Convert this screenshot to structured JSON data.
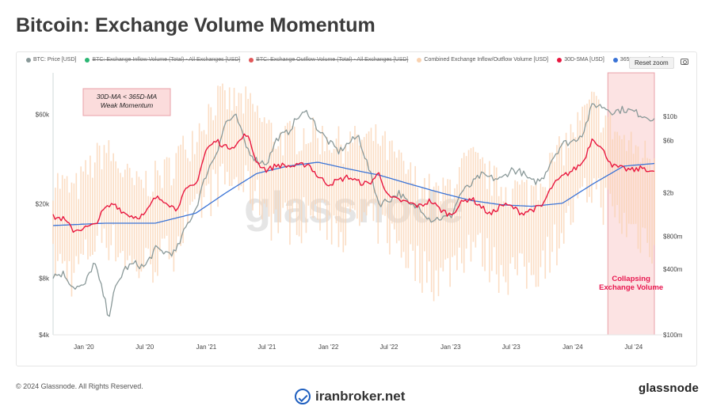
{
  "page": {
    "title": "Bitcoin: Exchange Volume Momentum",
    "copyright": "© 2024 Glassnode. All Rights Reserved.",
    "watermark_site": "iranbroker.net",
    "footer_logo": "glassnode",
    "center_watermark": "glassnode"
  },
  "toolbar": {
    "reset_zoom_label": "Reset zoom",
    "camera_icon": "camera-icon"
  },
  "legend": [
    {
      "label": "BTC: Price [USD]",
      "color": "#8a9999",
      "enabled": true
    },
    {
      "label": "BTC: Exchange Inflow Volume (Total) - All Exchanges [USD]",
      "color": "#2bb673",
      "enabled": false
    },
    {
      "label": "BTC: Exchange Outflow Volume (Total) - All Exchanges [USD]",
      "color": "#e15759",
      "enabled": false
    },
    {
      "label": "Combined Exchange Inflow/Outflow Volume [USD]",
      "color": "#f9d2b0",
      "enabled": true
    },
    {
      "label": "30D-SMA [USD]",
      "color": "#e8173f",
      "enabled": true
    },
    {
      "label": "365D-SMA [USD]",
      "color": "#3a73d6",
      "enabled": true
    }
  ],
  "annotations": {
    "weak_momentum": [
      "30D-MA < 365D-MA",
      "Weak Momentum"
    ],
    "collapsing": [
      "Collapsing",
      "Exchange Volume"
    ],
    "highlight_color": "#fbdcdc",
    "highlight_text_color": "#e8174f"
  },
  "chart_data": {
    "type": "line",
    "title": "Bitcoin: Exchange Volume Momentum",
    "x_ticks": [
      "Jan '20",
      "Jul '20",
      "Jan '21",
      "Jul '21",
      "Jan '22",
      "Jul '22",
      "Jan '23",
      "Jul '23",
      "Jan '24",
      "Jul '24"
    ],
    "x_range": [
      "2019-10-01",
      "2024-09-01"
    ],
    "y_left": {
      "label": "",
      "scale": "log",
      "ticks": [
        "$4k",
        "$8k",
        "$20k",
        "$60k"
      ],
      "tick_values": [
        4000,
        8000,
        20000,
        60000
      ],
      "range": [
        4000,
        100000
      ]
    },
    "y_right": {
      "label": "",
      "scale": "log",
      "ticks": [
        "$100m",
        "$400m",
        "$800m",
        "$2b",
        "$6b",
        "$10b"
      ],
      "tick_values": [
        100000000,
        400000000,
        800000000,
        2000000000,
        6000000000,
        10000000000
      ],
      "range": [
        100000000,
        25000000000
      ]
    },
    "highlight_range": [
      "2024-04-15",
      "2024-09-01"
    ],
    "grid": false,
    "legend_position": "top",
    "series": [
      {
        "name": "BTC: Price [USD]",
        "axis": "left",
        "color": "#8a9999",
        "dates": [
          "2019-10-01",
          "2019-11-01",
          "2019-12-01",
          "2020-01-01",
          "2020-02-01",
          "2020-03-01",
          "2020-03-15",
          "2020-04-01",
          "2020-05-01",
          "2020-06-01",
          "2020-07-01",
          "2020-08-01",
          "2020-09-01",
          "2020-10-01",
          "2020-11-01",
          "2020-12-01",
          "2021-01-01",
          "2021-02-01",
          "2021-03-01",
          "2021-04-01",
          "2021-05-01",
          "2021-06-01",
          "2021-07-01",
          "2021-08-01",
          "2021-09-01",
          "2021-10-01",
          "2021-11-01",
          "2021-12-01",
          "2022-01-01",
          "2022-02-01",
          "2022-03-01",
          "2022-04-01",
          "2022-05-01",
          "2022-06-01",
          "2022-07-01",
          "2022-08-01",
          "2022-09-01",
          "2022-10-01",
          "2022-11-01",
          "2022-12-01",
          "2023-01-01",
          "2023-02-01",
          "2023-03-01",
          "2023-04-01",
          "2023-05-01",
          "2023-06-01",
          "2023-07-01",
          "2023-08-01",
          "2023-09-01",
          "2023-10-01",
          "2023-11-01",
          "2023-12-01",
          "2024-01-01",
          "2024-02-01",
          "2024-03-01",
          "2024-04-01",
          "2024-05-01",
          "2024-06-01",
          "2024-07-01",
          "2024-08-01",
          "2024-09-01"
        ],
        "values": [
          8300,
          8500,
          7200,
          7200,
          9800,
          6400,
          5000,
          6800,
          9000,
          9600,
          9200,
          11500,
          11000,
          11000,
          15000,
          19000,
          29000,
          38000,
          55000,
          58000,
          40000,
          34000,
          33000,
          45000,
          48000,
          58000,
          62000,
          50000,
          43000,
          38000,
          42000,
          46000,
          31000,
          20000,
          21000,
          23000,
          19500,
          19300,
          16500,
          16800,
          17000,
          23000,
          25000,
          28500,
          27500,
          27000,
          30500,
          29500,
          26000,
          27000,
          35000,
          42000,
          43000,
          48000,
          68000,
          66000,
          62000,
          64000,
          62000,
          59000,
          57000
        ]
      },
      {
        "name": "Combined Exchange Inflow/Outflow Volume [USD]",
        "axis": "right",
        "color": "#f9d2b0",
        "dates": [
          "2019-10-01",
          "2019-12-01",
          "2020-03-01",
          "2020-06-01",
          "2020-09-01",
          "2020-12-01",
          "2021-02-01",
          "2021-05-01",
          "2021-08-01",
          "2021-11-01",
          "2022-02-01",
          "2022-06-01",
          "2022-09-01",
          "2022-12-01",
          "2023-03-01",
          "2023-06-01",
          "2023-09-01",
          "2023-12-01",
          "2024-03-01",
          "2024-06-01",
          "2024-09-01"
        ],
        "values": [
          1300000000,
          1000000000,
          2500000000,
          1100000000,
          1500000000,
          3500000000,
          7000000000,
          6500000000,
          3000000000,
          3500000000,
          2800000000,
          3000000000,
          1400000000,
          900000000,
          2000000000,
          1100000000,
          1000000000,
          2500000000,
          6500000000,
          2800000000,
          2000000000
        ]
      },
      {
        "name": "30D-SMA [USD]",
        "axis": "right",
        "color": "#e8173f",
        "dates": [
          "2019-10-01",
          "2019-11-01",
          "2019-12-01",
          "2020-01-01",
          "2020-02-01",
          "2020-03-01",
          "2020-04-01",
          "2020-05-01",
          "2020-06-01",
          "2020-07-01",
          "2020-08-01",
          "2020-09-01",
          "2020-10-01",
          "2020-11-01",
          "2020-12-01",
          "2021-01-01",
          "2021-02-01",
          "2021-03-01",
          "2021-04-01",
          "2021-05-01",
          "2021-06-01",
          "2021-07-01",
          "2021-08-01",
          "2021-09-01",
          "2021-10-01",
          "2021-11-01",
          "2021-12-01",
          "2022-01-01",
          "2022-02-01",
          "2022-03-01",
          "2022-04-01",
          "2022-05-01",
          "2022-06-01",
          "2022-07-01",
          "2022-08-01",
          "2022-09-01",
          "2022-10-01",
          "2022-11-01",
          "2022-12-01",
          "2023-01-01",
          "2023-02-01",
          "2023-03-01",
          "2023-04-01",
          "2023-05-01",
          "2023-06-01",
          "2023-07-01",
          "2023-08-01",
          "2023-09-01",
          "2023-10-01",
          "2023-11-01",
          "2023-12-01",
          "2024-01-01",
          "2024-02-01",
          "2024-03-01",
          "2024-04-01",
          "2024-05-01",
          "2024-06-01",
          "2024-07-01",
          "2024-08-01",
          "2024-09-01"
        ],
        "values": [
          1200000000,
          1150000000,
          900000000,
          950000000,
          1000000000,
          1400000000,
          1600000000,
          1300000000,
          1200000000,
          1250000000,
          1800000000,
          1700000000,
          1400000000,
          2100000000,
          2400000000,
          5000000000,
          6000000000,
          5200000000,
          5500000000,
          7000000000,
          3800000000,
          3200000000,
          3600000000,
          3500000000,
          3500000000,
          3700000000,
          2800000000,
          2400000000,
          2600000000,
          2800000000,
          2500000000,
          2400000000,
          3000000000,
          1800000000,
          1700000000,
          1600000000,
          1500000000,
          1700000000,
          1400000000,
          1250000000,
          1600000000,
          1800000000,
          1500000000,
          1250000000,
          1550000000,
          1500000000,
          1300000000,
          1400000000,
          1500000000,
          2300000000,
          2800000000,
          3200000000,
          3800000000,
          6500000000,
          4800000000,
          3500000000,
          3300000000,
          3200000000,
          3400000000,
          3000000000
        ]
      },
      {
        "name": "365D-SMA [USD]",
        "axis": "right",
        "color": "#3a73d6",
        "dates": [
          "2019-10-01",
          "2020-03-01",
          "2020-08-01",
          "2020-12-01",
          "2021-03-01",
          "2021-06-01",
          "2021-09-01",
          "2021-12-01",
          "2022-03-01",
          "2022-06-01",
          "2022-09-01",
          "2022-12-01",
          "2023-03-01",
          "2023-06-01",
          "2023-09-01",
          "2023-12-01",
          "2024-03-01",
          "2024-06-01",
          "2024-09-01"
        ],
        "values": [
          1000000000,
          1050000000,
          1050000000,
          1300000000,
          2000000000,
          3000000000,
          3500000000,
          3800000000,
          3300000000,
          2900000000,
          2400000000,
          2000000000,
          1700000000,
          1550000000,
          1500000000,
          1600000000,
          2400000000,
          3500000000,
          3700000000
        ]
      }
    ]
  }
}
